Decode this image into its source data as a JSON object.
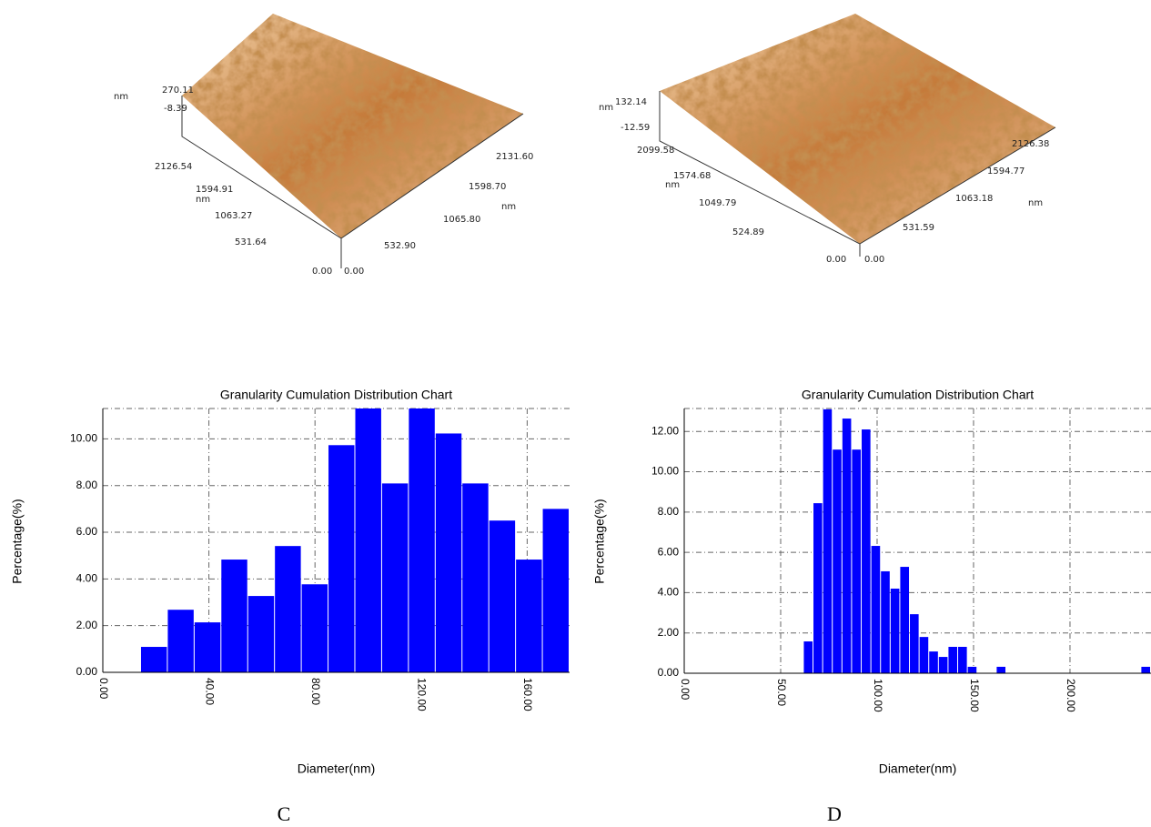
{
  "afm_images": [
    {
      "labels": [
        "nm",
        "270.11",
        "-8.39",
        "2126.54",
        "1594.91",
        "nm",
        "1063.27",
        "531.64",
        "0.00",
        "0.00",
        "532.90",
        "1065.80",
        "1598.70",
        "2131.60",
        "nm"
      ]
    },
    {
      "labels": [
        "nm",
        "132.14",
        "-12.59",
        "2099.58",
        "1574.68",
        "nm",
        "1049.79",
        "524.89",
        "0.00",
        "0.00",
        "531.59",
        "1063.18",
        "1594.77",
        "2126.38",
        "nm"
      ]
    }
  ],
  "panels": [
    "C",
    "D"
  ],
  "chart_data": [
    {
      "type": "histogram",
      "title": "Granularity Cumulation Distribution  Chart",
      "x_label": "Diameter(nm)",
      "y_label": "Percentage(%)",
      "color": "#0000ff",
      "grid": true,
      "bins": [
        14.4,
        24.5,
        34.6,
        44.7,
        54.8,
        64.9,
        75.0,
        85.1,
        95.2,
        105.3,
        115.4,
        125.5,
        135.6,
        145.7,
        155.8,
        165.9,
        176.0
      ],
      "values": [
        1.09,
        2.68,
        2.14,
        4.83,
        3.27,
        5.41,
        3.77,
        9.73,
        11.3,
        8.09,
        11.3,
        10.23,
        8.09,
        6.5,
        4.83,
        7.0
      ],
      "xlim": [
        0,
        176
      ],
      "ylim": [
        0,
        11.3
      ],
      "xticks": [
        {
          "value": 0,
          "label": "0.00"
        },
        {
          "value": 40,
          "label": "40.00"
        },
        {
          "value": 80,
          "label": "80.00"
        },
        {
          "value": 120,
          "label": "120.00"
        },
        {
          "value": 160,
          "label": "160.00"
        }
      ],
      "yticks": [
        {
          "value": 0,
          "label": "0.00"
        },
        {
          "value": 2,
          "label": "2.00"
        },
        {
          "value": 4,
          "label": "4.00"
        },
        {
          "value": 6,
          "label": "6.00"
        },
        {
          "value": 8,
          "label": "8.00"
        },
        {
          "value": 10,
          "label": "10.00"
        }
      ]
    },
    {
      "type": "histogram",
      "title": "Granularity Cumulation Distribution  Chart",
      "x_label": "Diameter(nm)",
      "y_label": "Percentage(%)",
      "color": "#0000ff",
      "grid": true,
      "bins": [
        62,
        67,
        72,
        77,
        82,
        87,
        92,
        97,
        102,
        107,
        112,
        117,
        122,
        127,
        132,
        137,
        142,
        147,
        152,
        157,
        162,
        167,
        172,
        177,
        182,
        187,
        192,
        197,
        202,
        207,
        212,
        217,
        222,
        227,
        232,
        237,
        242
      ],
      "values": [
        1.58,
        8.44,
        13.1,
        11.1,
        12.64,
        11.1,
        12.1,
        6.32,
        5.06,
        4.2,
        5.28,
        2.93,
        1.8,
        1.08,
        0.81,
        1.31,
        1.31,
        0.32,
        0,
        0,
        0.32,
        0,
        0,
        0,
        0,
        0,
        0,
        0,
        0,
        0,
        0,
        0,
        0,
        0,
        0,
        0.32
      ],
      "xlim": [
        0,
        242
      ],
      "ylim": [
        0,
        13.14
      ],
      "xticks": [
        {
          "value": 0,
          "label": "0.00"
        },
        {
          "value": 50,
          "label": "50.00"
        },
        {
          "value": 100,
          "label": "100.00"
        },
        {
          "value": 150,
          "label": "150.00"
        },
        {
          "value": 200,
          "label": "200.00"
        }
      ],
      "yticks": [
        {
          "value": 0,
          "label": "0.00"
        },
        {
          "value": 2,
          "label": "2.00"
        },
        {
          "value": 4,
          "label": "4.00"
        },
        {
          "value": 6,
          "label": "6.00"
        },
        {
          "value": 8,
          "label": "8.00"
        },
        {
          "value": 10,
          "label": "10.00"
        },
        {
          "value": 12,
          "label": "12.00"
        }
      ]
    }
  ]
}
